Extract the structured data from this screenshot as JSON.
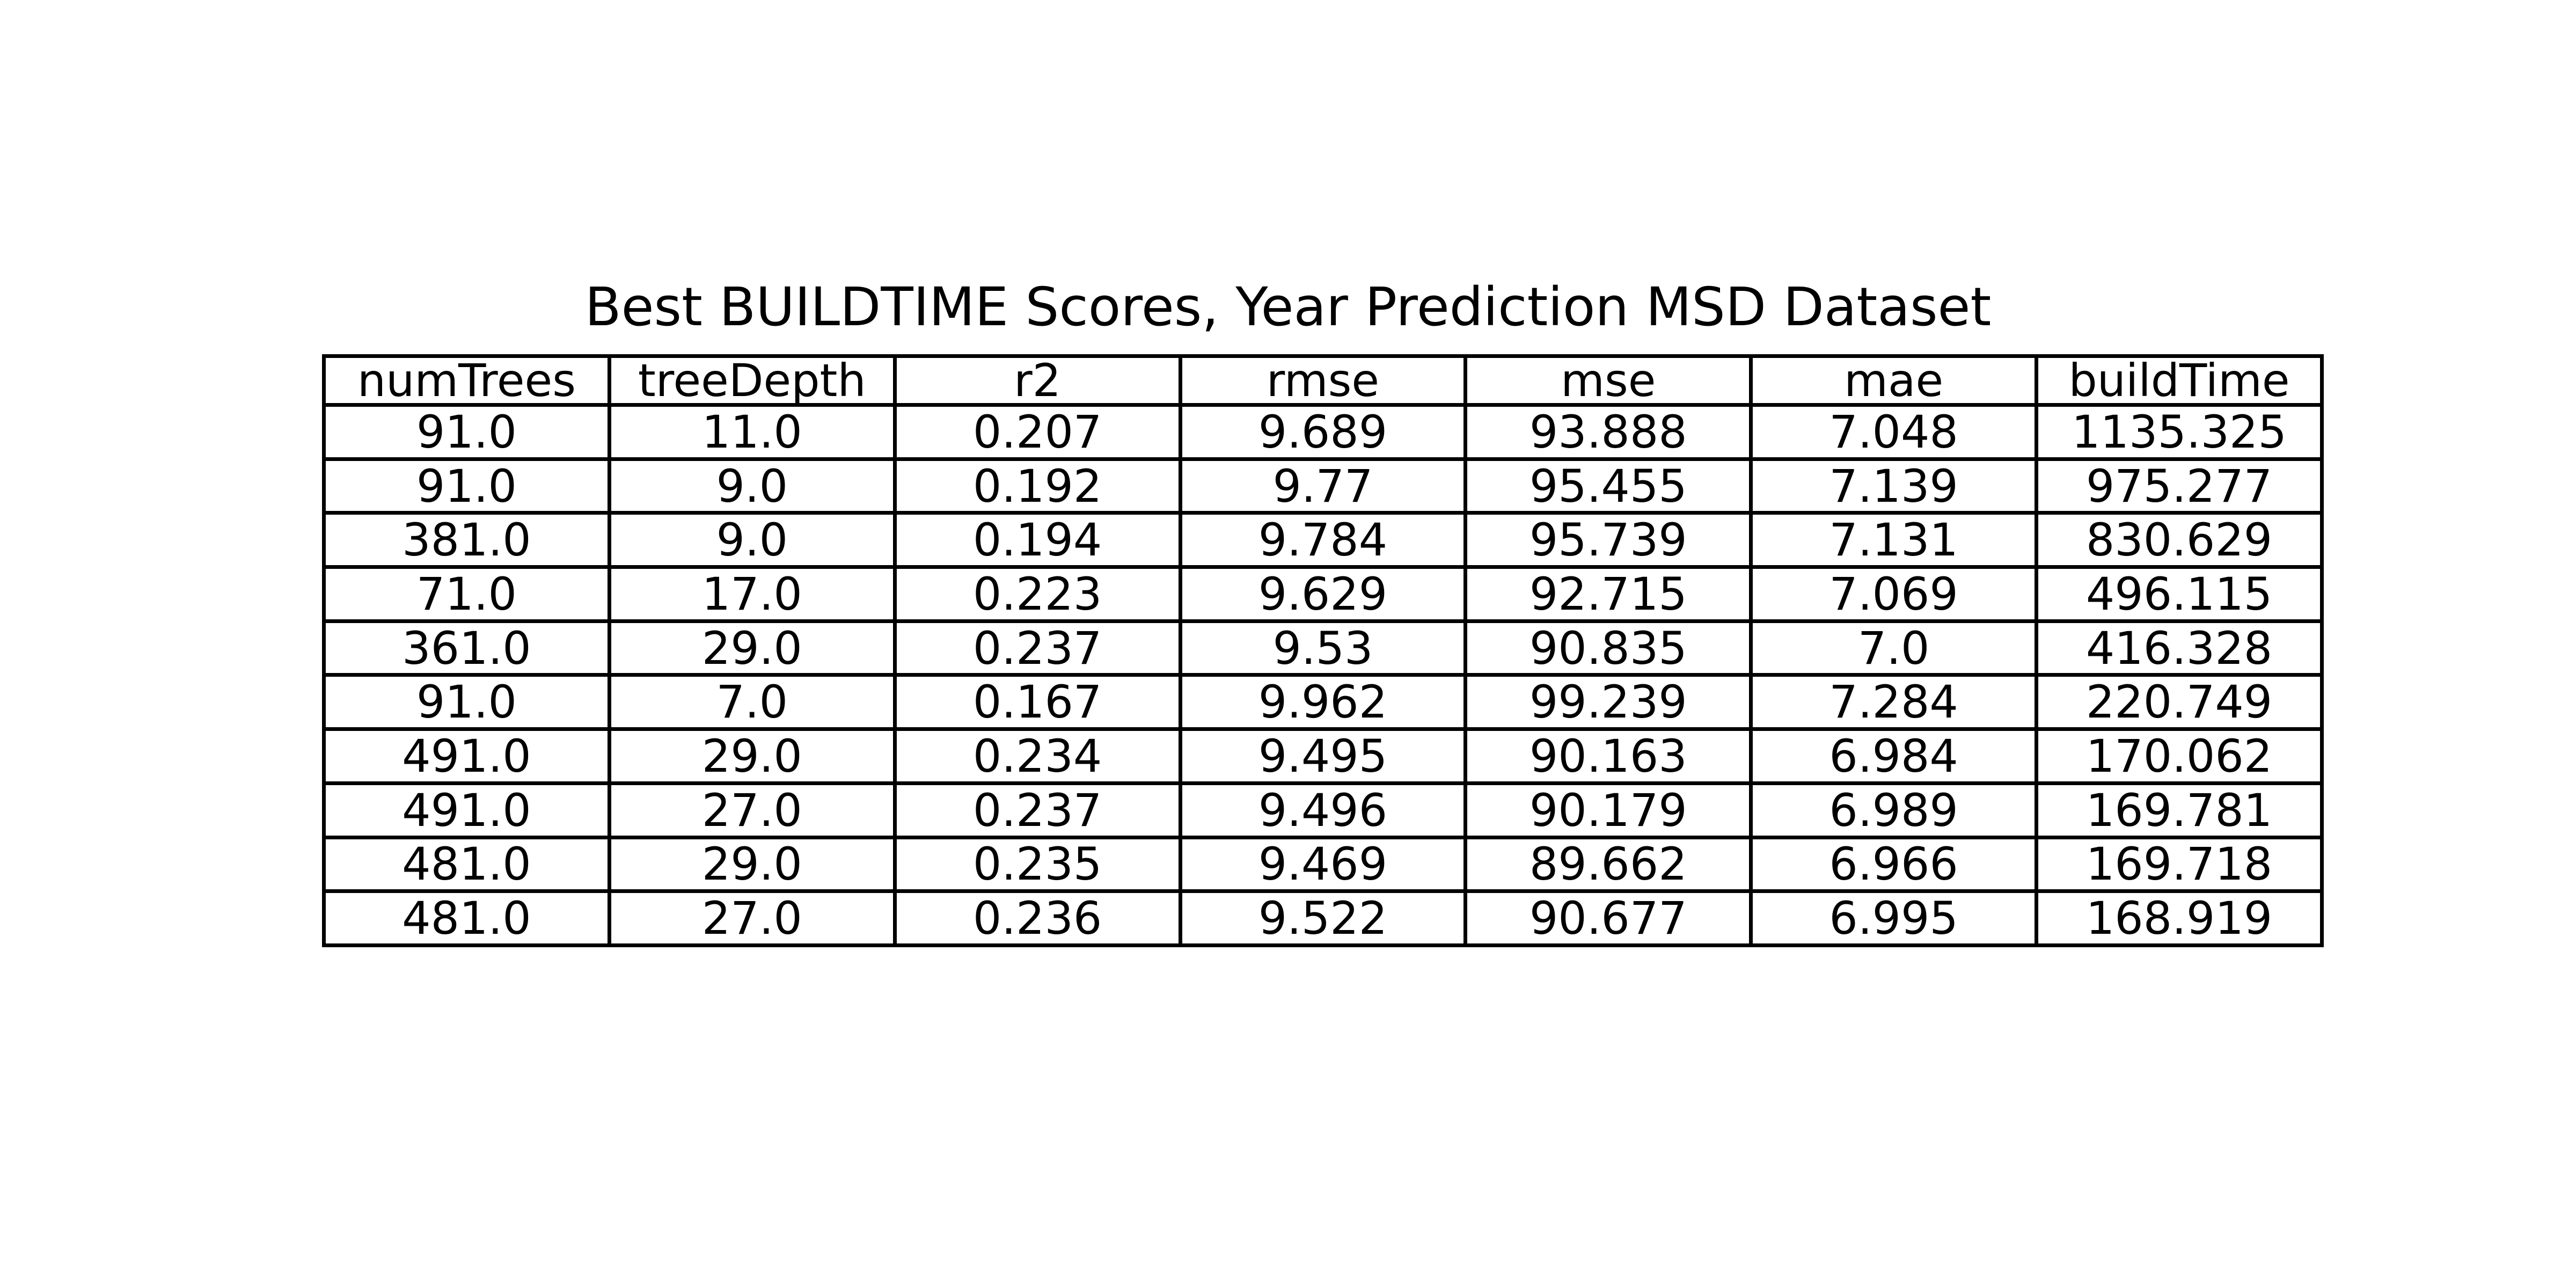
{
  "chart_data": {
    "type": "table",
    "title": "Best BUILDTIME Scores, Year Prediction MSD Dataset",
    "columns": [
      "numTrees",
      "treeDepth",
      "r2",
      "rmse",
      "mse",
      "mae",
      "buildTime"
    ],
    "rows": [
      [
        "91.0",
        "11.0",
        "0.207",
        "9.689",
        "93.888",
        "7.048",
        "1135.325"
      ],
      [
        "91.0",
        "9.0",
        "0.192",
        "9.77",
        "95.455",
        "7.139",
        "975.277"
      ],
      [
        "381.0",
        "9.0",
        "0.194",
        "9.784",
        "95.739",
        "7.131",
        "830.629"
      ],
      [
        "71.0",
        "17.0",
        "0.223",
        "9.629",
        "92.715",
        "7.069",
        "496.115"
      ],
      [
        "361.0",
        "29.0",
        "0.237",
        "9.53",
        "90.835",
        "7.0",
        "416.328"
      ],
      [
        "91.0",
        "7.0",
        "0.167",
        "9.962",
        "99.239",
        "7.284",
        "220.749"
      ],
      [
        "491.0",
        "29.0",
        "0.234",
        "9.495",
        "90.163",
        "6.984",
        "170.062"
      ],
      [
        "491.0",
        "27.0",
        "0.237",
        "9.496",
        "90.179",
        "6.989",
        "169.781"
      ],
      [
        "481.0",
        "29.0",
        "0.235",
        "9.469",
        "89.662",
        "6.966",
        "169.718"
      ],
      [
        "481.0",
        "27.0",
        "0.236",
        "9.522",
        "90.677",
        "6.995",
        "168.919"
      ]
    ],
    "grid": true,
    "colors": {
      "background": "#ffffff",
      "text": "#000000",
      "border": "#000000"
    }
  }
}
